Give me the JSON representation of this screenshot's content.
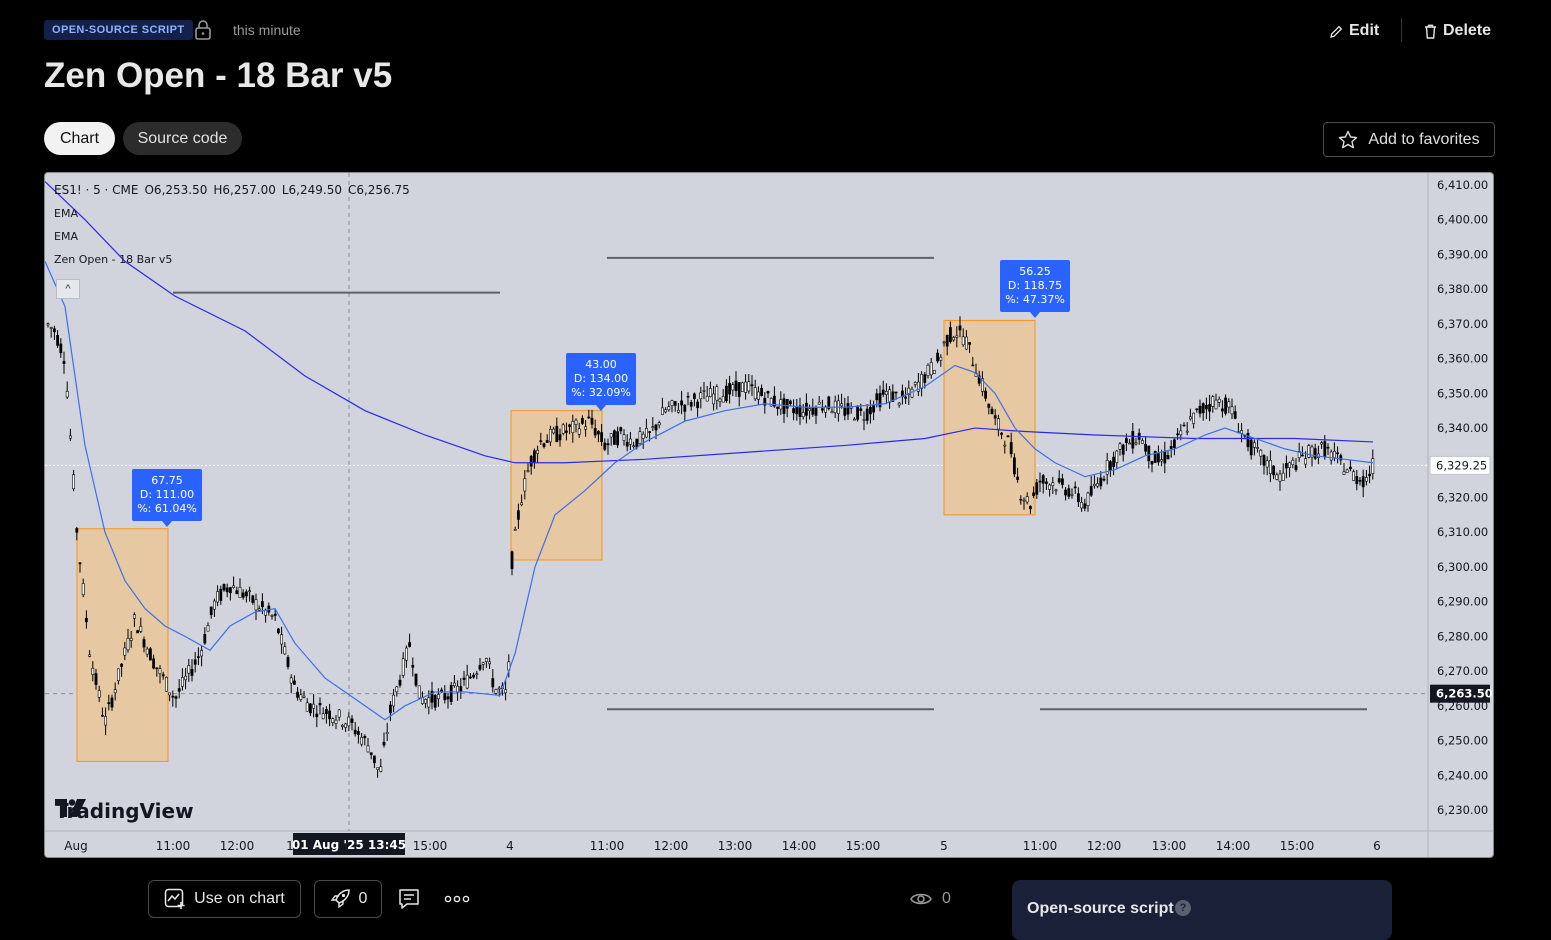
{
  "header": {
    "badge": "OPEN-SOURCE SCRIPT",
    "time": "this minute",
    "edit_label": "Edit",
    "delete_label": "Delete",
    "title": "Zen Open - 18 Bar v5"
  },
  "tabs": [
    {
      "label": "Chart",
      "active": true
    },
    {
      "label": "Source code",
      "active": false
    }
  ],
  "favorites_label": "Add to favorites",
  "chart_legend": {
    "symbol": "ES1! · 5 · CME",
    "open": "O6,253.50",
    "high": "H6,257.00",
    "low": "L6,249.50",
    "close": "C6,256.75",
    "indicators": [
      "EMA",
      "EMA",
      "Zen Open - 18 Bar v5"
    ]
  },
  "chart_data": {
    "type": "candlestick",
    "y_ticks": [
      "6,410.00",
      "6,400.00",
      "6,390.00",
      "6,380.00",
      "6,370.00",
      "6,360.00",
      "6,350.00",
      "6,340.00",
      "6,330.00",
      "6,320.00",
      "6,310.00",
      "6,300.00",
      "6,290.00",
      "6,280.00",
      "6,270.00",
      "6,260.00",
      "6,250.00",
      "6,240.00",
      "6,230.00"
    ],
    "ylim": [
      6225,
      6413
    ],
    "x_ticks": [
      "Aug",
      "11:00",
      "12:00",
      "1",
      "15:00",
      "4",
      "11:00",
      "12:00",
      "13:00",
      "14:00",
      "15:00",
      "5",
      "11:00",
      "12:00",
      "13:00",
      "14:00",
      "15:00",
      "6"
    ],
    "crosshair_label": "01 Aug '25   13:45",
    "price_labels": [
      {
        "text": "6,329.25",
        "value": 6329.25,
        "style": "current"
      },
      {
        "text": "6,263.50",
        "value": 6263.5,
        "style": "crosshair"
      }
    ],
    "callouts": [
      {
        "value": "67.75",
        "d": "D: 111.00",
        "pct": "%: 61.04%"
      },
      {
        "value": "43.00",
        "d": "D: 134.00",
        "pct": "%: 32.09%"
      },
      {
        "value": "56.25",
        "d": "D: 118.75",
        "pct": "%: 47.37%"
      }
    ],
    "ranges": [
      {
        "low": 6244,
        "high": 6311
      },
      {
        "low": 6302,
        "high": 6345
      },
      {
        "low": 6315,
        "high": 6371
      }
    ],
    "levels": [
      {
        "value": 6379,
        "segment": 1
      },
      {
        "value": 6389,
        "segment": 2
      },
      {
        "value": 6259,
        "segment": 2
      },
      {
        "value": 6259,
        "segment": 3
      }
    ],
    "colors": {
      "callout": "#2962ff",
      "range_fill": "#e6c9a3",
      "range_border": "#f7931a",
      "ema": "#2a2ae6",
      "candle": "#000000"
    }
  },
  "watermark": "TradingView",
  "bottom": {
    "use_on_chart": "Use on chart",
    "boosts": "0",
    "views": "0",
    "open_source_label": "Open-source script"
  }
}
